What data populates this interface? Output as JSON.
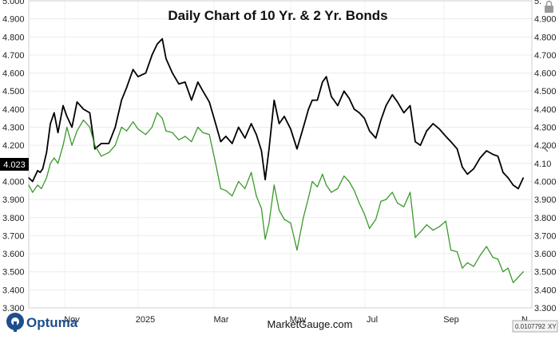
{
  "chart_data": {
    "type": "line",
    "title": "Daily Chart of 10 Yr. & 2 Yr. Bonds",
    "xlabel": "",
    "ylabel": "",
    "x_tick_labels": [
      "Nov",
      "2025",
      "Mar",
      "May",
      "Jul",
      "Sep",
      "N"
    ],
    "y_tick_labels_left": [
      "5.000",
      "4.900",
      "4.800",
      "4.700",
      "4.600",
      "4.500",
      "4.400",
      "4.300",
      "4.200",
      "4.100",
      "4.000",
      "3.900",
      "3.800",
      "3.700",
      "3.600",
      "3.500",
      "3.400",
      "3.300"
    ],
    "y_tick_labels_right": [
      "5.",
      "4.900",
      "4.800",
      "4.700",
      "4.600",
      "4.500",
      "4.400",
      "4.300",
      "4.200",
      "4.10",
      "4.000",
      "3.900",
      "3.800",
      "3.700",
      "3.600",
      "3.500",
      "3.400",
      "3.300"
    ],
    "ylim": [
      3.3,
      5.0
    ],
    "grid": true,
    "current_value_label": "4.023",
    "scale_label": "0.0107792",
    "scale_suffix": "XY",
    "series": [
      {
        "color": "#000000",
        "values": [
          {
            "x": "2024-10-01",
            "y": 4.02
          },
          {
            "x": "2024-10-04",
            "y": 4.0
          },
          {
            "x": "2024-10-08",
            "y": 4.06
          },
          {
            "x": "2024-10-10",
            "y": 4.05
          },
          {
            "x": "2024-10-12",
            "y": 4.07
          },
          {
            "x": "2024-10-15",
            "y": 4.16
          },
          {
            "x": "2024-10-18",
            "y": 4.32
          },
          {
            "x": "2024-10-21",
            "y": 4.38
          },
          {
            "x": "2024-10-24",
            "y": 4.27
          },
          {
            "x": "2024-10-28",
            "y": 4.42
          },
          {
            "x": "2024-10-31",
            "y": 4.36
          },
          {
            "x": "2024-11-04",
            "y": 4.3
          },
          {
            "x": "2024-11-08",
            "y": 4.44
          },
          {
            "x": "2024-11-13",
            "y": 4.4
          },
          {
            "x": "2024-11-18",
            "y": 4.38
          },
          {
            "x": "2024-11-22",
            "y": 4.18
          },
          {
            "x": "2024-11-27",
            "y": 4.21
          },
          {
            "x": "2024-12-03",
            "y": 4.21
          },
          {
            "x": "2024-12-08",
            "y": 4.3
          },
          {
            "x": "2024-12-13",
            "y": 4.45
          },
          {
            "x": "2024-12-17",
            "y": 4.52
          },
          {
            "x": "2024-12-22",
            "y": 4.62
          },
          {
            "x": "2024-12-26",
            "y": 4.58
          },
          {
            "x": "2025-01-01",
            "y": 4.6
          },
          {
            "x": "2025-01-06",
            "y": 4.7
          },
          {
            "x": "2025-01-10",
            "y": 4.76
          },
          {
            "x": "2025-01-14",
            "y": 4.79
          },
          {
            "x": "2025-01-17",
            "y": 4.68
          },
          {
            "x": "2025-01-22",
            "y": 4.6
          },
          {
            "x": "2025-01-27",
            "y": 4.54
          },
          {
            "x": "2025-02-01",
            "y": 4.55
          },
          {
            "x": "2025-02-06",
            "y": 4.45
          },
          {
            "x": "2025-02-11",
            "y": 4.55
          },
          {
            "x": "2025-02-15",
            "y": 4.5
          },
          {
            "x": "2025-02-20",
            "y": 4.44
          },
          {
            "x": "2025-02-25",
            "y": 4.32
          },
          {
            "x": "2025-03-01",
            "y": 4.22
          },
          {
            "x": "2025-03-05",
            "y": 4.25
          },
          {
            "x": "2025-03-10",
            "y": 4.21
          },
          {
            "x": "2025-03-15",
            "y": 4.3
          },
          {
            "x": "2025-03-20",
            "y": 4.24
          },
          {
            "x": "2025-03-25",
            "y": 4.32
          },
          {
            "x": "2025-03-29",
            "y": 4.26
          },
          {
            "x": "2025-04-02",
            "y": 4.17
          },
          {
            "x": "2025-04-05",
            "y": 4.01
          },
          {
            "x": "2025-04-08",
            "y": 4.18
          },
          {
            "x": "2025-04-12",
            "y": 4.45
          },
          {
            "x": "2025-04-16",
            "y": 4.32
          },
          {
            "x": "2025-04-20",
            "y": 4.36
          },
          {
            "x": "2025-04-25",
            "y": 4.29
          },
          {
            "x": "2025-04-30",
            "y": 4.18
          },
          {
            "x": "2025-05-05",
            "y": 4.3
          },
          {
            "x": "2025-05-09",
            "y": 4.4
          },
          {
            "x": "2025-05-12",
            "y": 4.45
          },
          {
            "x": "2025-05-16",
            "y": 4.45
          },
          {
            "x": "2025-05-20",
            "y": 4.55
          },
          {
            "x": "2025-05-23",
            "y": 4.58
          },
          {
            "x": "2025-05-27",
            "y": 4.47
          },
          {
            "x": "2025-06-01",
            "y": 4.42
          },
          {
            "x": "2025-06-06",
            "y": 4.5
          },
          {
            "x": "2025-06-10",
            "y": 4.46
          },
          {
            "x": "2025-06-14",
            "y": 4.4
          },
          {
            "x": "2025-06-18",
            "y": 4.38
          },
          {
            "x": "2025-06-22",
            "y": 4.35
          },
          {
            "x": "2025-06-26",
            "y": 4.28
          },
          {
            "x": "2025-07-01",
            "y": 4.24
          },
          {
            "x": "2025-07-05",
            "y": 4.34
          },
          {
            "x": "2025-07-09",
            "y": 4.42
          },
          {
            "x": "2025-07-14",
            "y": 4.48
          },
          {
            "x": "2025-07-18",
            "y": 4.44
          },
          {
            "x": "2025-07-23",
            "y": 4.38
          },
          {
            "x": "2025-07-28",
            "y": 4.42
          },
          {
            "x": "2025-08-01",
            "y": 4.22
          },
          {
            "x": "2025-08-05",
            "y": 4.2
          },
          {
            "x": "2025-08-10",
            "y": 4.28
          },
          {
            "x": "2025-08-15",
            "y": 4.32
          },
          {
            "x": "2025-08-20",
            "y": 4.29
          },
          {
            "x": "2025-08-25",
            "y": 4.25
          },
          {
            "x": "2025-08-29",
            "y": 4.22
          },
          {
            "x": "2025-09-03",
            "y": 4.18
          },
          {
            "x": "2025-09-07",
            "y": 4.08
          },
          {
            "x": "2025-09-11",
            "y": 4.04
          },
          {
            "x": "2025-09-16",
            "y": 4.07
          },
          {
            "x": "2025-09-21",
            "y": 4.13
          },
          {
            "x": "2025-09-26",
            "y": 4.17
          },
          {
            "x": "2025-10-01",
            "y": 4.15
          },
          {
            "x": "2025-10-05",
            "y": 4.14
          },
          {
            "x": "2025-10-09",
            "y": 4.05
          },
          {
            "x": "2025-10-13",
            "y": 4.02
          },
          {
            "x": "2025-10-17",
            "y": 3.98
          },
          {
            "x": "2025-10-21",
            "y": 3.96
          },
          {
            "x": "2025-10-25",
            "y": 4.02
          }
        ]
      },
      {
        "color": "#3a9a2a",
        "values": [
          {
            "x": "2024-10-01",
            "y": 3.98
          },
          {
            "x": "2024-10-04",
            "y": 3.94
          },
          {
            "x": "2024-10-08",
            "y": 3.98
          },
          {
            "x": "2024-10-11",
            "y": 3.96
          },
          {
            "x": "2024-10-15",
            "y": 4.02
          },
          {
            "x": "2024-10-18",
            "y": 4.1
          },
          {
            "x": "2024-10-21",
            "y": 4.13
          },
          {
            "x": "2024-10-24",
            "y": 4.1
          },
          {
            "x": "2024-10-28",
            "y": 4.2
          },
          {
            "x": "2024-10-31",
            "y": 4.3
          },
          {
            "x": "2024-11-04",
            "y": 4.2
          },
          {
            "x": "2024-11-08",
            "y": 4.28
          },
          {
            "x": "2024-11-13",
            "y": 4.34
          },
          {
            "x": "2024-11-18",
            "y": 4.3
          },
          {
            "x": "2024-11-22",
            "y": 4.2
          },
          {
            "x": "2024-11-27",
            "y": 4.14
          },
          {
            "x": "2024-12-03",
            "y": 4.16
          },
          {
            "x": "2024-12-08",
            "y": 4.2
          },
          {
            "x": "2024-12-13",
            "y": 4.3
          },
          {
            "x": "2024-12-17",
            "y": 4.28
          },
          {
            "x": "2024-12-22",
            "y": 4.33
          },
          {
            "x": "2024-12-26",
            "y": 4.29
          },
          {
            "x": "2025-01-01",
            "y": 4.26
          },
          {
            "x": "2025-01-06",
            "y": 4.3
          },
          {
            "x": "2025-01-10",
            "y": 4.38
          },
          {
            "x": "2025-01-14",
            "y": 4.35
          },
          {
            "x": "2025-01-17",
            "y": 4.28
          },
          {
            "x": "2025-01-22",
            "y": 4.27
          },
          {
            "x": "2025-01-27",
            "y": 4.23
          },
          {
            "x": "2025-02-01",
            "y": 4.25
          },
          {
            "x": "2025-02-06",
            "y": 4.22
          },
          {
            "x": "2025-02-11",
            "y": 4.3
          },
          {
            "x": "2025-02-15",
            "y": 4.27
          },
          {
            "x": "2025-02-20",
            "y": 4.26
          },
          {
            "x": "2025-02-25",
            "y": 4.1
          },
          {
            "x": "2025-03-01",
            "y": 3.96
          },
          {
            "x": "2025-03-05",
            "y": 3.95
          },
          {
            "x": "2025-03-10",
            "y": 3.92
          },
          {
            "x": "2025-03-15",
            "y": 4.0
          },
          {
            "x": "2025-03-20",
            "y": 3.96
          },
          {
            "x": "2025-03-25",
            "y": 4.05
          },
          {
            "x": "2025-03-29",
            "y": 3.92
          },
          {
            "x": "2025-04-02",
            "y": 3.85
          },
          {
            "x": "2025-04-05",
            "y": 3.68
          },
          {
            "x": "2025-04-08",
            "y": 3.77
          },
          {
            "x": "2025-04-12",
            "y": 3.98
          },
          {
            "x": "2025-04-16",
            "y": 3.84
          },
          {
            "x": "2025-04-20",
            "y": 3.79
          },
          {
            "x": "2025-04-25",
            "y": 3.77
          },
          {
            "x": "2025-04-30",
            "y": 3.62
          },
          {
            "x": "2025-05-05",
            "y": 3.8
          },
          {
            "x": "2025-05-09",
            "y": 3.91
          },
          {
            "x": "2025-05-12",
            "y": 4.0
          },
          {
            "x": "2025-05-16",
            "y": 3.97
          },
          {
            "x": "2025-05-20",
            "y": 4.04
          },
          {
            "x": "2025-05-23",
            "y": 3.98
          },
          {
            "x": "2025-05-27",
            "y": 3.94
          },
          {
            "x": "2025-06-01",
            "y": 3.96
          },
          {
            "x": "2025-06-06",
            "y": 4.03
          },
          {
            "x": "2025-06-10",
            "y": 4.0
          },
          {
            "x": "2025-06-14",
            "y": 3.95
          },
          {
            "x": "2025-06-18",
            "y": 3.88
          },
          {
            "x": "2025-06-22",
            "y": 3.82
          },
          {
            "x": "2025-06-26",
            "y": 3.74
          },
          {
            "x": "2025-07-01",
            "y": 3.79
          },
          {
            "x": "2025-07-05",
            "y": 3.89
          },
          {
            "x": "2025-07-09",
            "y": 3.9
          },
          {
            "x": "2025-07-14",
            "y": 3.94
          },
          {
            "x": "2025-07-18",
            "y": 3.88
          },
          {
            "x": "2025-07-23",
            "y": 3.86
          },
          {
            "x": "2025-07-28",
            "y": 3.94
          },
          {
            "x": "2025-08-01",
            "y": 3.69
          },
          {
            "x": "2025-08-05",
            "y": 3.72
          },
          {
            "x": "2025-08-10",
            "y": 3.76
          },
          {
            "x": "2025-08-15",
            "y": 3.73
          },
          {
            "x": "2025-08-20",
            "y": 3.75
          },
          {
            "x": "2025-08-25",
            "y": 3.78
          },
          {
            "x": "2025-08-29",
            "y": 3.62
          },
          {
            "x": "2025-09-03",
            "y": 3.61
          },
          {
            "x": "2025-09-07",
            "y": 3.52
          },
          {
            "x": "2025-09-11",
            "y": 3.55
          },
          {
            "x": "2025-09-16",
            "y": 3.53
          },
          {
            "x": "2025-09-21",
            "y": 3.59
          },
          {
            "x": "2025-09-26",
            "y": 3.64
          },
          {
            "x": "2025-10-01",
            "y": 3.58
          },
          {
            "x": "2025-10-05",
            "y": 3.57
          },
          {
            "x": "2025-10-09",
            "y": 3.5
          },
          {
            "x": "2025-10-13",
            "y": 3.52
          },
          {
            "x": "2025-10-17",
            "y": 3.44
          },
          {
            "x": "2025-10-21",
            "y": 3.47
          },
          {
            "x": "2025-10-25",
            "y": 3.5
          }
        ]
      }
    ]
  },
  "footer": {
    "brand": "Optuma",
    "site": "MarketGauge.com"
  }
}
